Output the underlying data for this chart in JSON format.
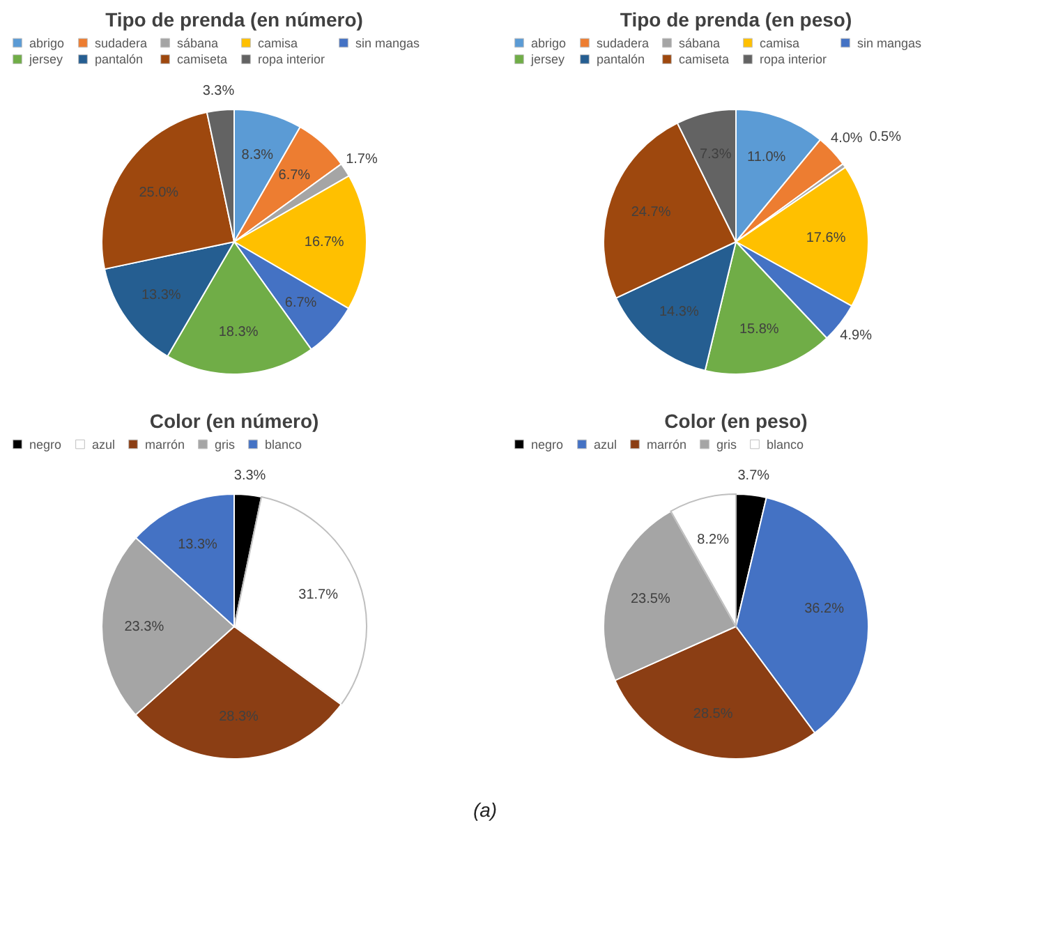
{
  "chart_data": [
    {
      "type": "pie",
      "title": "Tipo de prenda (en número)",
      "legend": "top",
      "categories": [
        "abrigo",
        "sudadera",
        "sábana",
        "camisa",
        "sin mangas",
        "jersey",
        "pantalón",
        "camiseta",
        "ropa interior"
      ],
      "values": [
        8.3,
        6.7,
        1.7,
        16.7,
        6.7,
        18.3,
        13.3,
        25.0,
        3.3
      ],
      "value_labels": [
        "8.3%",
        "6.7%",
        "1.7%",
        "16.7%",
        "6.7%",
        "18.3%",
        "13.3%",
        "25.0%",
        "3.3%"
      ],
      "colors": [
        "#5b9bd5",
        "#ed7d31",
        "#a5a5a5",
        "#ffc000",
        "#4472c4",
        "#70ad47",
        "#255e91",
        "#9e480e",
        "#636363"
      ]
    },
    {
      "type": "pie",
      "title": "Tipo de prenda (en peso)",
      "legend": "top",
      "categories": [
        "abrigo",
        "sudadera",
        "sábana",
        "camisa",
        "sin mangas",
        "jersey",
        "pantalón",
        "camiseta",
        "ropa interior"
      ],
      "values": [
        11.0,
        4.0,
        0.5,
        17.6,
        4.9,
        15.8,
        14.3,
        24.7,
        7.3
      ],
      "value_labels": [
        "11.0%",
        "4.0%",
        "0.5%",
        "17.6%",
        "4.9%",
        "15.8%",
        "14.3%",
        "24.7%",
        "7.3%"
      ],
      "colors": [
        "#5b9bd5",
        "#ed7d31",
        "#a5a5a5",
        "#ffc000",
        "#4472c4",
        "#70ad47",
        "#255e91",
        "#9e480e",
        "#636363"
      ]
    },
    {
      "type": "pie",
      "title": "Color (en número)",
      "legend": "top",
      "categories": [
        "negro",
        "azul",
        "marrón",
        "gris",
        "blanco"
      ],
      "values": [
        3.3,
        31.7,
        28.3,
        23.3,
        13.3
      ],
      "value_labels": [
        "3.3%",
        "31.7%",
        "28.3%",
        "23.3%",
        "13.3%"
      ],
      "colors": [
        "#000000",
        "#ffffff",
        "#8b3e14",
        "#a5a5a5",
        "#4472c4"
      ]
    },
    {
      "type": "pie",
      "title": "Color (en peso)",
      "legend": "top",
      "categories": [
        "negro",
        "azul",
        "marrón",
        "gris",
        "blanco"
      ],
      "values": [
        3.7,
        36.2,
        28.5,
        23.5,
        8.2
      ],
      "value_labels": [
        "3.7%",
        "36.2%",
        "28.5%",
        "23.5%",
        "8.2%"
      ],
      "colors": [
        "#000000",
        "#4472c4",
        "#8b3e14",
        "#a5a5a5",
        "#ffffff"
      ],
      "annotations": [
        "(a)"
      ]
    }
  ]
}
